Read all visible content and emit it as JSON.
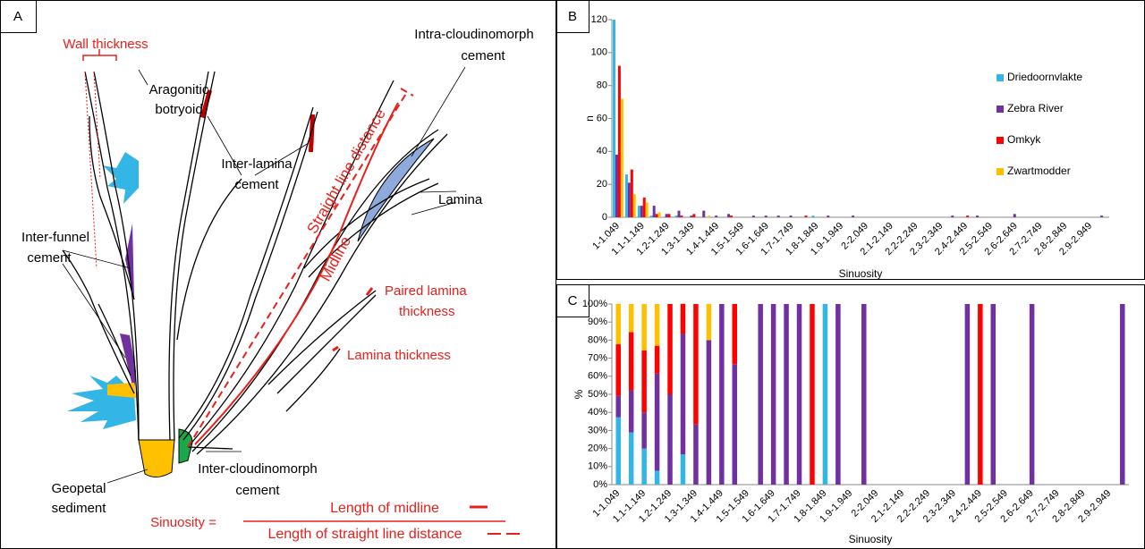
{
  "diagram": {
    "panel": "A",
    "labels": {
      "wall_thickness": "Wall thickness",
      "aragonitic": "Aragonitic",
      "botryoid": "botryoid",
      "inter_lamina": "Inter-lamina",
      "inter_lamina_2": "cement",
      "intra": "Intra-cloudinomorph",
      "intra_2": "cement",
      "lamina": "Lamina",
      "inter_funnel": "Inter-funnel",
      "inter_funnel_2": "cement",
      "paired": "Paired lamina",
      "paired_2": "thickness",
      "lamina_thickness": "Lamina thickness",
      "inter_cloud": "Inter-cloudinomorph",
      "inter_cloud_2": "cement",
      "geopetal": "Geopetal",
      "geopetal_2": "sediment",
      "straight": "Straight line distance",
      "midline": "Midline",
      "sinuosity": "Sinuosity =",
      "numerator": "Length of midline",
      "denominator": "Length of straight line distance"
    }
  },
  "chart_data": [
    {
      "type": "bar",
      "panel": "B",
      "x_label": "Sinuosity",
      "y_label": "n",
      "grid": false,
      "legend": "right",
      "categories": [
        "1-1.049",
        null,
        "1.1-1.149",
        null,
        "1.2-1.249",
        null,
        "1.3-1.349",
        null,
        "1.4-1.449",
        null,
        "1.5-1.549",
        null,
        "1.6-1.649",
        null,
        "1.7-1.749",
        null,
        "1.8-1.849",
        null,
        "1.9-1.949",
        null,
        "2-2.049",
        null,
        "2.1-2.149",
        null,
        "2.2-2.249",
        null,
        "2.3-2.349",
        null,
        "2.4-2.449",
        null,
        "2.5-2.549",
        null,
        "2.6-2.649",
        null,
        "2.7-2.749",
        null,
        "2.8-2.849",
        null,
        "2.9-2.949",
        null
      ],
      "ylim": [
        0,
        120
      ],
      "yticks": [
        0,
        20,
        40,
        60,
        80,
        100,
        120
      ],
      "series": [
        {
          "name": "Driedoornvlakte",
          "color": "#33b5e5",
          "values": [
            120,
            26,
            7,
            1,
            0,
            1,
            0,
            0,
            0,
            0,
            0,
            0,
            0,
            0,
            0,
            0,
            1,
            0,
            0,
            0,
            0,
            0,
            0,
            0,
            0,
            0,
            0,
            0,
            0,
            0,
            0,
            0,
            0,
            0,
            0,
            0,
            0,
            0,
            0,
            0
          ]
        },
        {
          "name": "Zebra River",
          "color": "#7030a0",
          "values": [
            38,
            21,
            7,
            7,
            2,
            4,
            1,
            4,
            1,
            2,
            0,
            1,
            1,
            1,
            1,
            0,
            0,
            1,
            0,
            1,
            0,
            0,
            0,
            0,
            0,
            0,
            0,
            1,
            0,
            1,
            0,
            0,
            2,
            0,
            0,
            0,
            0,
            0,
            0,
            1
          ]
        },
        {
          "name": "Omkyk",
          "color": "#ff0000",
          "values": [
            92,
            29,
            12,
            2,
            2,
            1,
            2,
            0,
            0,
            1,
            0,
            0,
            0,
            0,
            0,
            1,
            0,
            0,
            0,
            0,
            0,
            0,
            0,
            0,
            0,
            0,
            0,
            0,
            1,
            0,
            0,
            0,
            0,
            0,
            0,
            0,
            0,
            0,
            0,
            0
          ]
        },
        {
          "name": "Zwartmodder",
          "color": "#ffc000",
          "values": [
            72,
            14,
            9,
            3,
            0,
            0,
            0,
            1,
            0,
            0,
            0,
            0,
            0,
            0,
            0,
            0,
            0,
            0,
            0,
            0,
            0,
            0,
            0,
            0,
            0,
            0,
            0,
            0,
            0,
            0,
            0,
            0,
            0,
            0,
            0,
            0,
            0,
            0,
            0,
            0
          ]
        }
      ]
    },
    {
      "type": "stacked_bar",
      "panel": "C",
      "x_label": "Sinuosity",
      "y_label": "%",
      "grid": false,
      "categories": [
        "1-1.049",
        null,
        "1.1-1.149",
        null,
        "1.2-1.249",
        null,
        "1.3-1.349",
        null,
        "1.4-1.449",
        null,
        "1.5-1.549",
        null,
        "1.6-1.649",
        null,
        "1.7-1.749",
        null,
        "1.8-1.849",
        null,
        "1.9-1.949",
        null,
        "2-2.049",
        null,
        "2.1-2.149",
        null,
        "2.2-2.249",
        null,
        "2.3-2.349",
        null,
        "2.4-2.449",
        null,
        "2.5-2.549",
        null,
        "2.6-2.649",
        null,
        "2.7-2.749",
        null,
        "2.8-2.849",
        null,
        "2.9-2.949",
        null
      ],
      "ylim": [
        0,
        100
      ],
      "yticks": [
        {
          "value": 0,
          "label": "0%"
        },
        {
          "value": 10,
          "label": "10%"
        },
        {
          "value": 20,
          "label": "20%"
        },
        {
          "value": 30,
          "label": "30%"
        },
        {
          "value": 40,
          "label": "40%"
        },
        {
          "value": 50,
          "label": "50%"
        },
        {
          "value": 60,
          "label": "60%"
        },
        {
          "value": 70,
          "label": "70%"
        },
        {
          "value": 80,
          "label": "80%"
        },
        {
          "value": 90,
          "label": "90%"
        },
        {
          "value": 100,
          "label": "100%"
        }
      ],
      "series": [
        {
          "color": "#33b5e5",
          "values": [
            37.3,
            28.9,
            20,
            7.7,
            0,
            16.7,
            0,
            0,
            0,
            0,
            0,
            0,
            0,
            0,
            0,
            0,
            100,
            0,
            0,
            0,
            0,
            0,
            0,
            0,
            0,
            0,
            0,
            0,
            0,
            0,
            0,
            0,
            0,
            0,
            0,
            0,
            0,
            0,
            0,
            0
          ]
        },
        {
          "color": "#7030a0",
          "values": [
            11.8,
            23.3,
            20,
            53.8,
            50,
            66.7,
            33.3,
            80,
            100,
            66.7,
            0,
            100,
            100,
            100,
            100,
            0,
            0,
            100,
            0,
            100,
            0,
            0,
            0,
            0,
            0,
            0,
            0,
            100,
            0,
            100,
            0,
            0,
            100,
            0,
            0,
            0,
            0,
            0,
            0,
            100
          ]
        },
        {
          "color": "#ff0000",
          "values": [
            28.6,
            32.2,
            34.3,
            15.4,
            50,
            16.7,
            66.7,
            0,
            0,
            33.3,
            0,
            0,
            0,
            0,
            0,
            100,
            0,
            0,
            0,
            0,
            0,
            0,
            0,
            0,
            0,
            0,
            0,
            0,
            100,
            0,
            0,
            0,
            0,
            0,
            0,
            0,
            0,
            0,
            0,
            0
          ]
        },
        {
          "color": "#ffc000",
          "values": [
            22.4,
            15.6,
            25.7,
            23.1,
            0,
            0,
            0,
            20,
            0,
            0,
            0,
            0,
            0,
            0,
            0,
            0,
            0,
            0,
            0,
            0,
            0,
            0,
            0,
            0,
            0,
            0,
            0,
            0,
            0,
            0,
            0,
            0,
            0,
            0,
            0,
            0,
            0,
            0,
            0,
            0
          ]
        }
      ]
    }
  ]
}
